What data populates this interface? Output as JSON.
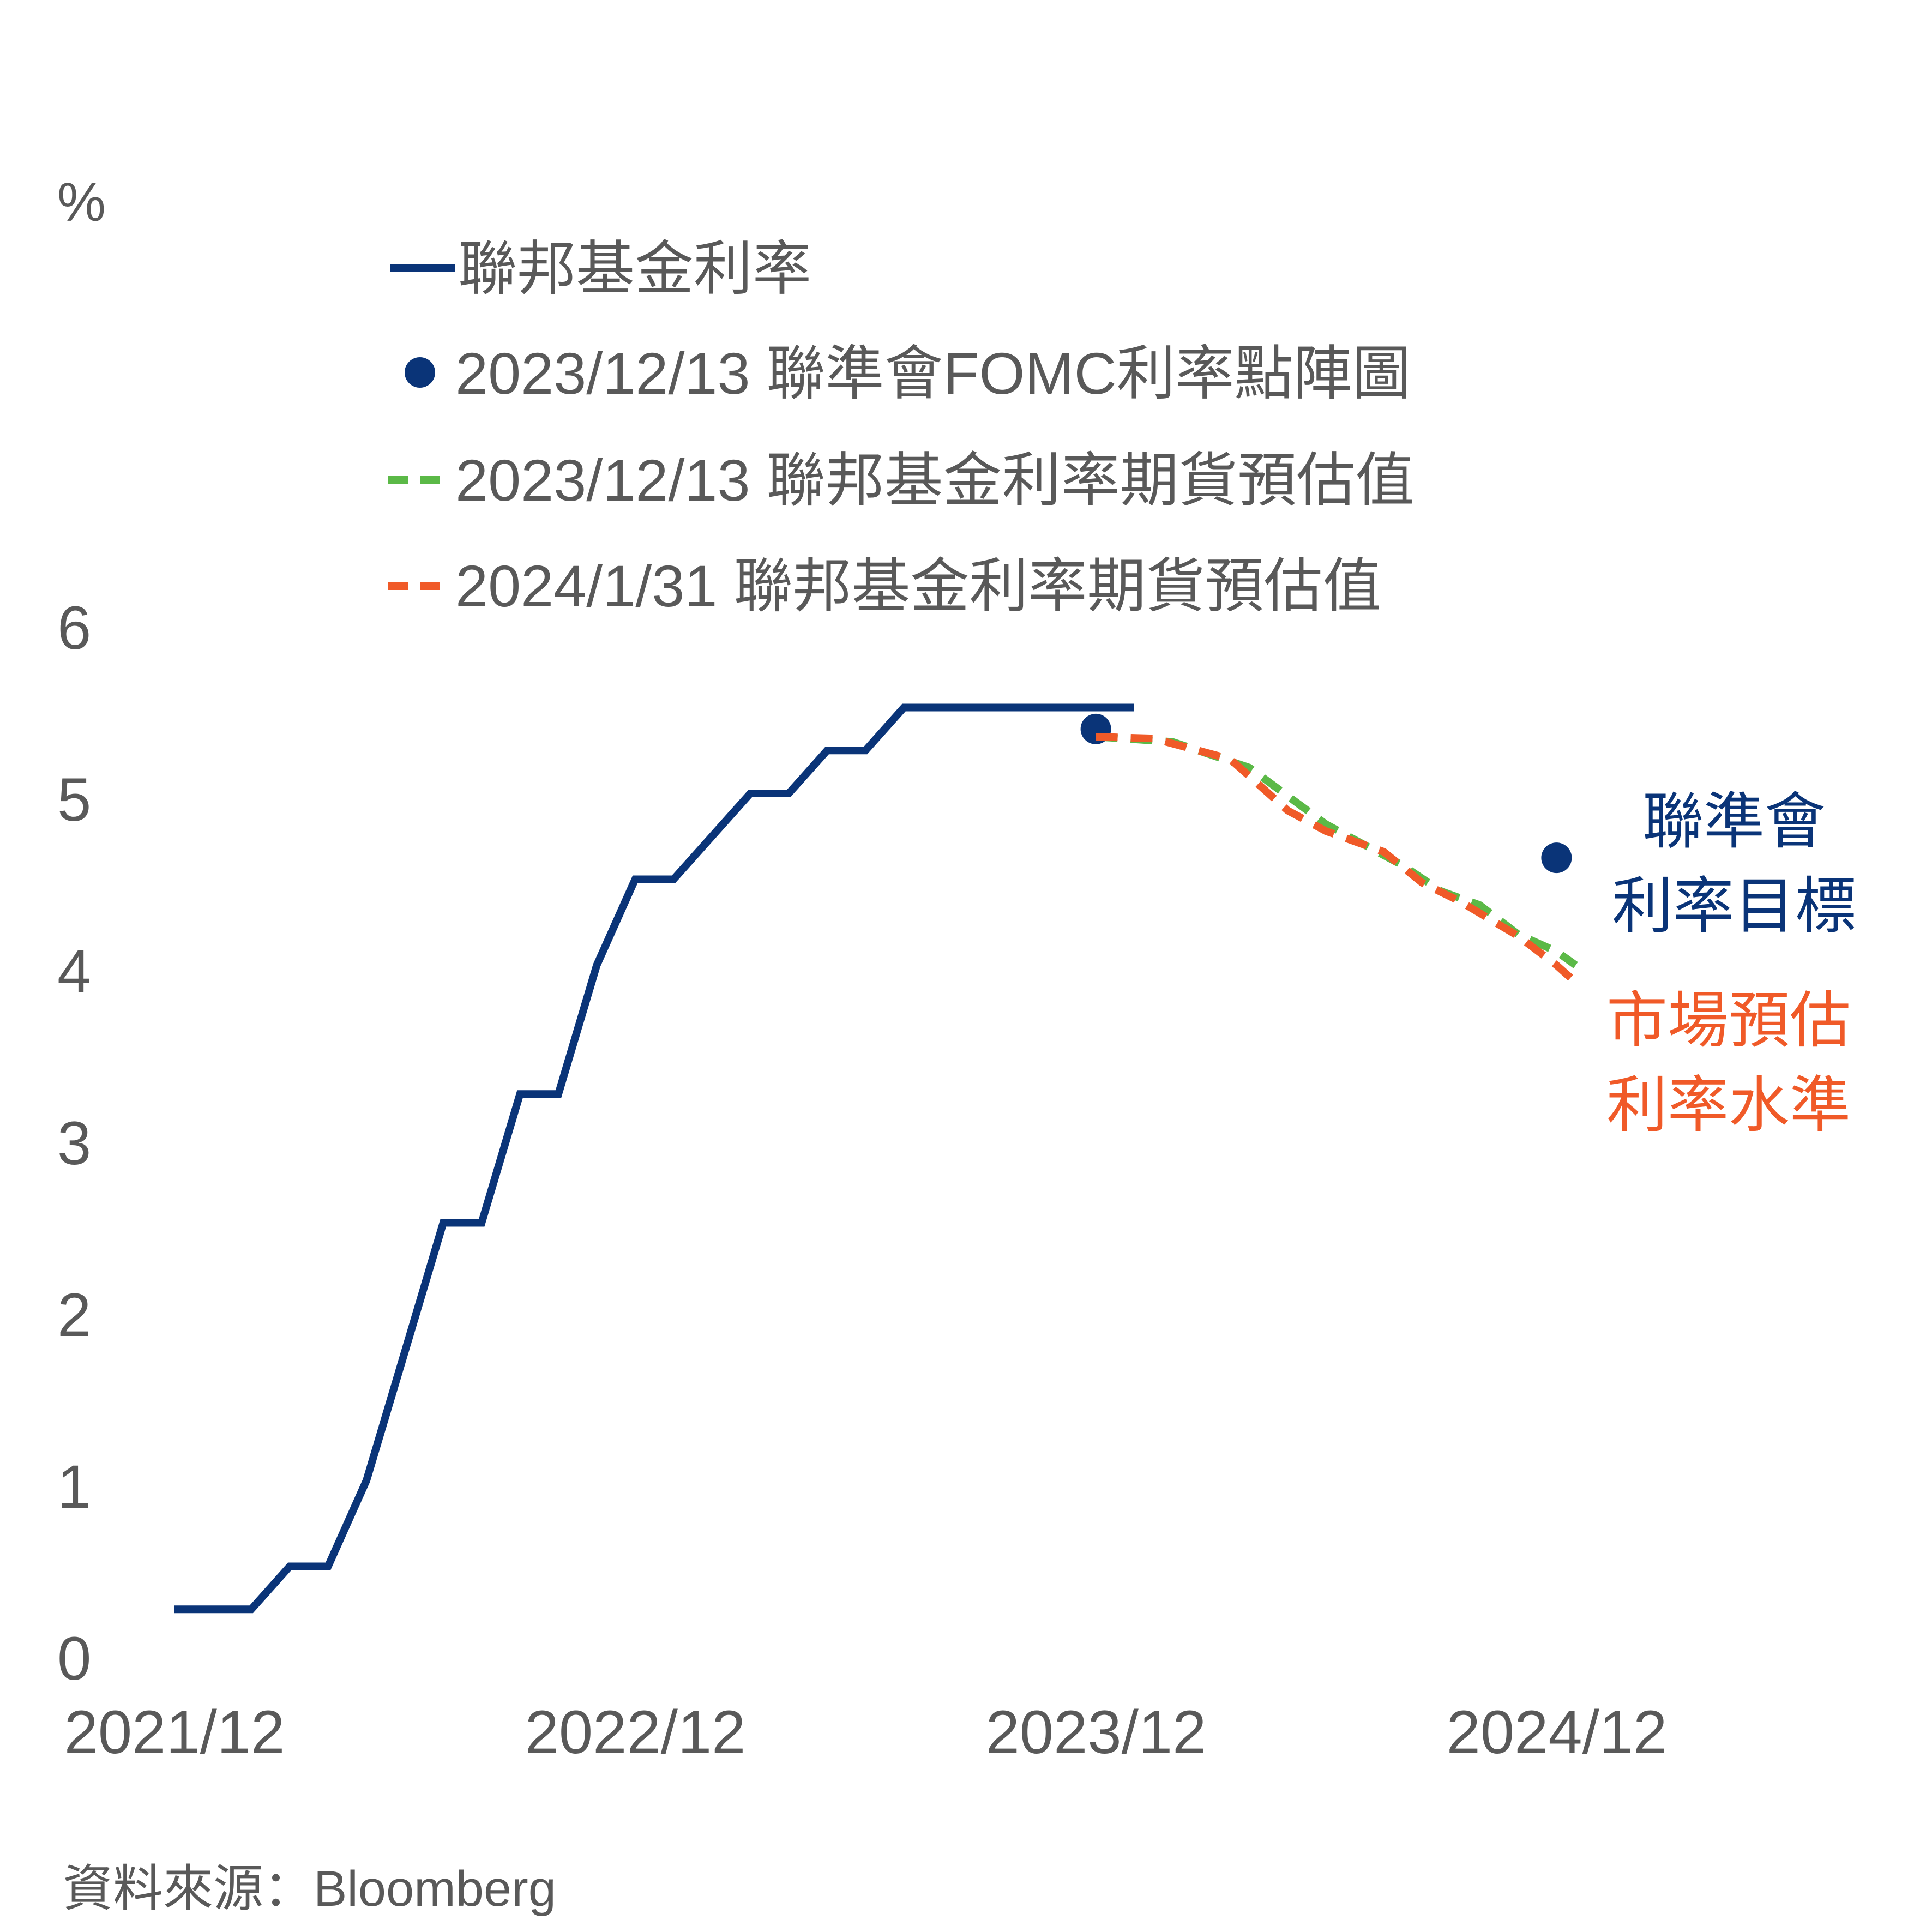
{
  "chart_data": {
    "type": "line",
    "ylabel": "%",
    "ylim": [
      0,
      6
    ],
    "yticks": [
      "0",
      "1",
      "2",
      "3",
      "4",
      "5",
      "6"
    ],
    "xticks": [
      {
        "value": 0,
        "label": "2021/12"
      },
      {
        "value": 12,
        "label": "2022/12"
      },
      {
        "value": 24,
        "label": "2023/12"
      },
      {
        "value": 36,
        "label": "2024/12"
      }
    ],
    "series": [
      {
        "name": "聯邦基金利率",
        "style": "solid",
        "color": "#0a3478",
        "points": [
          [
            0,
            0.25
          ],
          [
            2,
            0.25
          ],
          [
            3,
            0.5
          ],
          [
            4,
            0.5
          ],
          [
            5,
            1.0
          ],
          [
            7,
            2.5
          ],
          [
            8,
            2.5
          ],
          [
            9,
            3.25
          ],
          [
            10,
            3.25
          ],
          [
            11,
            4.0
          ],
          [
            12,
            4.5
          ],
          [
            13,
            4.5
          ],
          [
            15,
            5.0
          ],
          [
            16,
            5.0
          ],
          [
            17,
            5.25
          ],
          [
            18,
            5.25
          ],
          [
            19,
            5.5
          ],
          [
            25,
            5.5
          ]
        ]
      },
      {
        "name": "2023/12/13 聯準會FOMC利率點陣圖",
        "style": "dot",
        "color": "#0a3478",
        "points": [
          [
            24,
            5.375
          ],
          [
            36,
            4.625
          ]
        ]
      },
      {
        "name": "2023/12/13 聯邦基金利率期貨預估值",
        "style": "dashed",
        "color": "#5bb947",
        "points": [
          [
            24,
            5.33
          ],
          [
            26,
            5.3
          ],
          [
            28,
            5.15
          ],
          [
            30,
            4.82
          ],
          [
            31,
            4.7
          ],
          [
            32,
            4.58
          ],
          [
            33,
            4.43
          ],
          [
            34,
            4.35
          ],
          [
            35,
            4.18
          ],
          [
            36,
            4.08
          ],
          [
            36.5,
            4.0
          ]
        ]
      },
      {
        "name": "2024/1/31 聯邦基金利率期貨預估值",
        "style": "dashed",
        "color": "#f05a28",
        "points": [
          [
            24,
            5.33
          ],
          [
            25.5,
            5.32
          ],
          [
            27.5,
            5.2
          ],
          [
            29,
            4.9
          ],
          [
            30,
            4.78
          ],
          [
            31.5,
            4.66
          ],
          [
            32.5,
            4.48
          ],
          [
            33.5,
            4.37
          ],
          [
            35,
            4.17
          ],
          [
            36,
            4.0
          ],
          [
            36.5,
            3.9
          ]
        ]
      }
    ],
    "annotations": {
      "fomc_target": {
        "lines": [
          "聯準會",
          "利率目標"
        ],
        "color": "#0a3478"
      },
      "market_estimate": {
        "lines": [
          "市場預估",
          "利率水準"
        ],
        "color": "#f05a28"
      }
    }
  },
  "source": "資料來源：Bloomberg"
}
